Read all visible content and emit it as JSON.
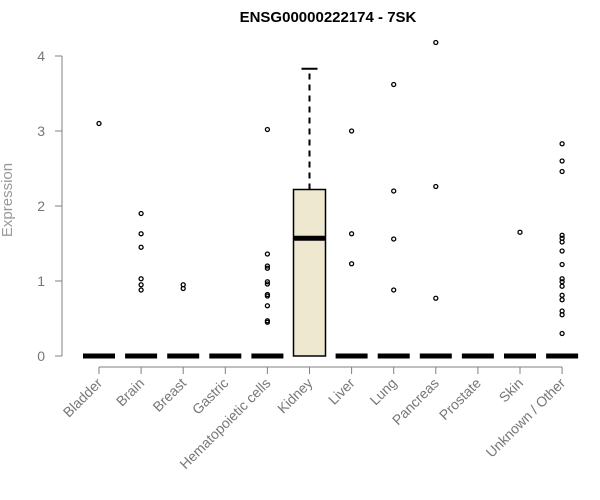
{
  "chart_data": {
    "type": "boxplot",
    "title": "ENSG00000222174 - 7SK",
    "xlabel": "",
    "ylabel": "Expression",
    "ylim": [
      0,
      4.2
    ],
    "yticks": [
      0,
      1,
      2,
      3,
      4
    ],
    "categories": [
      "Bladder",
      "Brain",
      "Breast",
      "Gastric",
      "Hematopoietic cells",
      "Kidney",
      "Liver",
      "Lung",
      "Pancreas",
      "Prostate",
      "Skin",
      "Unknown / Other"
    ],
    "boxes": [
      {
        "category": "Bladder",
        "q1": 0,
        "median": 0,
        "q3": 0,
        "whisker_low": 0,
        "whisker_high": 0,
        "outliers": [
          3.1
        ]
      },
      {
        "category": "Brain",
        "q1": 0,
        "median": 0,
        "q3": 0,
        "whisker_low": 0,
        "whisker_high": 0,
        "outliers": [
          1.9,
          1.63,
          1.45,
          1.03,
          0.95,
          0.88
        ]
      },
      {
        "category": "Breast",
        "q1": 0,
        "median": 0,
        "q3": 0,
        "whisker_low": 0,
        "whisker_high": 0,
        "outliers": [
          0.95,
          0.9
        ]
      },
      {
        "category": "Gastric",
        "q1": 0,
        "median": 0,
        "q3": 0,
        "whisker_low": 0,
        "whisker_high": 0,
        "outliers": []
      },
      {
        "category": "Hematopoietic cells",
        "q1": 0,
        "median": 0,
        "q3": 0,
        "whisker_low": 0,
        "whisker_high": 0,
        "outliers": [
          3.02,
          1.36,
          1.2,
          1.17,
          0.99,
          0.96,
          0.82,
          0.8,
          0.67,
          0.47,
          0.45
        ]
      },
      {
        "category": "Kidney",
        "q1": 0,
        "median": 1.57,
        "q3": 2.22,
        "whisker_low": 0,
        "whisker_high": 3.83,
        "outliers": []
      },
      {
        "category": "Liver",
        "q1": 0,
        "median": 0,
        "q3": 0,
        "whisker_low": 0,
        "whisker_high": 0,
        "outliers": [
          3.0,
          1.63,
          1.23
        ]
      },
      {
        "category": "Lung",
        "q1": 0,
        "median": 0,
        "q3": 0,
        "whisker_low": 0,
        "whisker_high": 0,
        "outliers": [
          3.62,
          2.2,
          1.56,
          0.88
        ]
      },
      {
        "category": "Pancreas",
        "q1": 0,
        "median": 0,
        "q3": 0,
        "whisker_low": 0,
        "whisker_high": 0,
        "outliers": [
          4.18,
          2.26,
          0.77
        ]
      },
      {
        "category": "Prostate",
        "q1": 0,
        "median": 0,
        "q3": 0,
        "whisker_low": 0,
        "whisker_high": 0,
        "outliers": []
      },
      {
        "category": "Skin",
        "q1": 0,
        "median": 0,
        "q3": 0,
        "whisker_low": 0,
        "whisker_high": 0,
        "outliers": [
          1.65
        ]
      },
      {
        "category": "Unknown / Other",
        "q1": 0,
        "median": 0,
        "q3": 0,
        "whisker_low": 0,
        "whisker_high": 0,
        "outliers": [
          2.83,
          2.6,
          2.46,
          1.61,
          1.57,
          1.52,
          1.4,
          1.22,
          1.03,
          0.99,
          0.93,
          0.81,
          0.75,
          0.6,
          0.55,
          0.3
        ]
      }
    ],
    "colors": {
      "box_fill": "#ede8cf",
      "box_fill_empty": "#ffffff",
      "stroke": "#000000",
      "axis": "#808080",
      "tick_text": "#777777",
      "axis_title": "#999999"
    },
    "grid": false,
    "legend": "none"
  }
}
